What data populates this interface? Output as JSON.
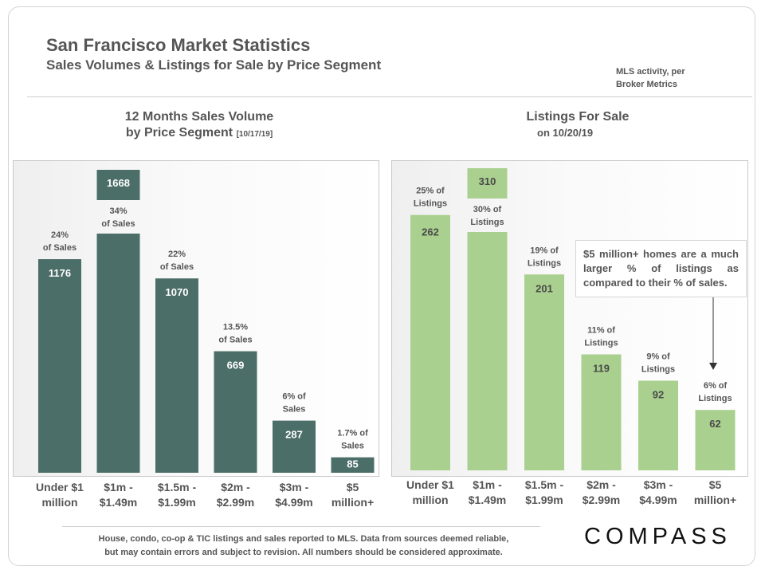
{
  "header": {
    "title": "San Francisco Market Statistics",
    "subtitle": "Sales Volumes & Listings for Sale by Price Segment",
    "note_line1": "MLS activity, per",
    "note_line2": "Broker Metrics"
  },
  "callout": "$5 million+ homes are a much larger % of listings as compared to their % of sales.",
  "footer": {
    "line1": "House, condo, co-op & TIC listings and sales reported to MLS. Data from sources deemed reliable,",
    "line2": "but may contain errors and subject to revision. All numbers should be considered approximate.",
    "logo": "COMPASS"
  },
  "colors": {
    "sales_bar": "#4b6e68",
    "listings_bar": "#a9d08e",
    "text": "#555555"
  },
  "chart_data": [
    {
      "type": "bar",
      "title": "12 Months Sales Volume",
      "title_line2": "by Price Segment",
      "title_date": "[10/17/19]",
      "categories": [
        [
          "Under $1",
          "million"
        ],
        [
          "$1m -",
          "$1.49m"
        ],
        [
          "$1.5m -",
          "$1.99m"
        ],
        [
          "$2m -",
          "$2.99m"
        ],
        [
          "$3m -",
          "$4.99m"
        ],
        [
          "$5",
          "million+"
        ]
      ],
      "values": [
        1176,
        1668,
        1070,
        669,
        287,
        85
      ],
      "pct_labels": [
        [
          "24%",
          "of Sales"
        ],
        [
          "34%",
          "of Sales"
        ],
        [
          "22%",
          "of Sales"
        ],
        [
          "13.5%",
          "of Sales"
        ],
        [
          "6% of",
          "Sales"
        ],
        [
          "1.7% of",
          "Sales"
        ]
      ],
      "ylim": [
        0,
        1850
      ]
    },
    {
      "type": "bar",
      "title": "Listings For Sale",
      "title_line2": "on 10/20/19",
      "categories": [
        [
          "Under $1",
          "million"
        ],
        [
          "$1m -",
          "$1.49m"
        ],
        [
          "$1.5m -",
          "$1.99m"
        ],
        [
          "$2m -",
          "$2.99m"
        ],
        [
          "$3m -",
          "$4.99m"
        ],
        [
          "$5",
          "million+"
        ]
      ],
      "values": [
        262,
        310,
        201,
        119,
        92,
        62
      ],
      "pct_labels": [
        [
          "25% of",
          "Listings"
        ],
        [
          "30% of",
          "Listings"
        ],
        [
          "19% of",
          "Listings"
        ],
        [
          "11% of",
          "Listings"
        ],
        [
          "9% of",
          "Listings"
        ],
        [
          "6% of",
          "Listings"
        ]
      ],
      "ylim": [
        0,
        345
      ]
    }
  ]
}
